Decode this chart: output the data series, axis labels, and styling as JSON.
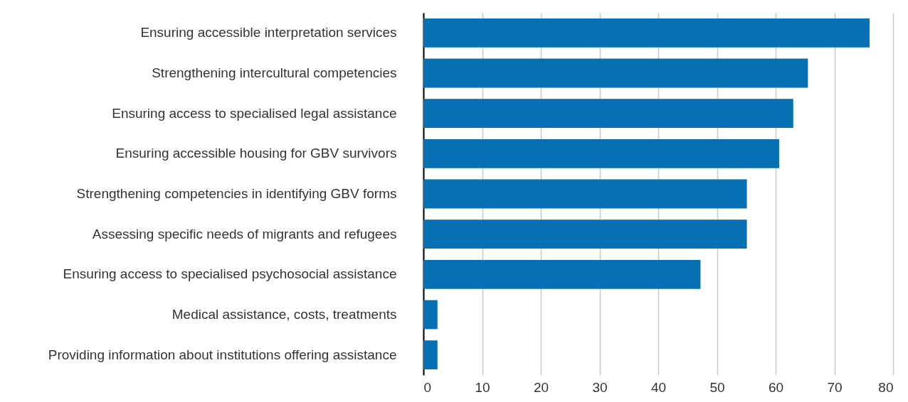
{
  "chart_data": {
    "type": "bar",
    "orientation": "horizontal",
    "categories": [
      "Ensuring accessible interpretation services",
      "Strengthening intercultural competencies",
      "Ensuring access to specialised legal assistance",
      "Ensuring accessible housing for GBV survivors",
      "Strengthening competencies in identifying GBV forms",
      "Assessing specific needs of migrants and refugees",
      "Ensuring access to specialised psychosocial assistance",
      "Medical assistance, costs, treatments",
      "Providing information about institutions offering assistance"
    ],
    "values": [
      76,
      65.5,
      63,
      60.6,
      55.1,
      55.1,
      47.2,
      2.4,
      2.4
    ],
    "color": "#0770b2",
    "xlim": [
      0,
      80
    ],
    "xticks": [
      0,
      10,
      20,
      30,
      40,
      50,
      60,
      70,
      80
    ],
    "grid": "x"
  }
}
